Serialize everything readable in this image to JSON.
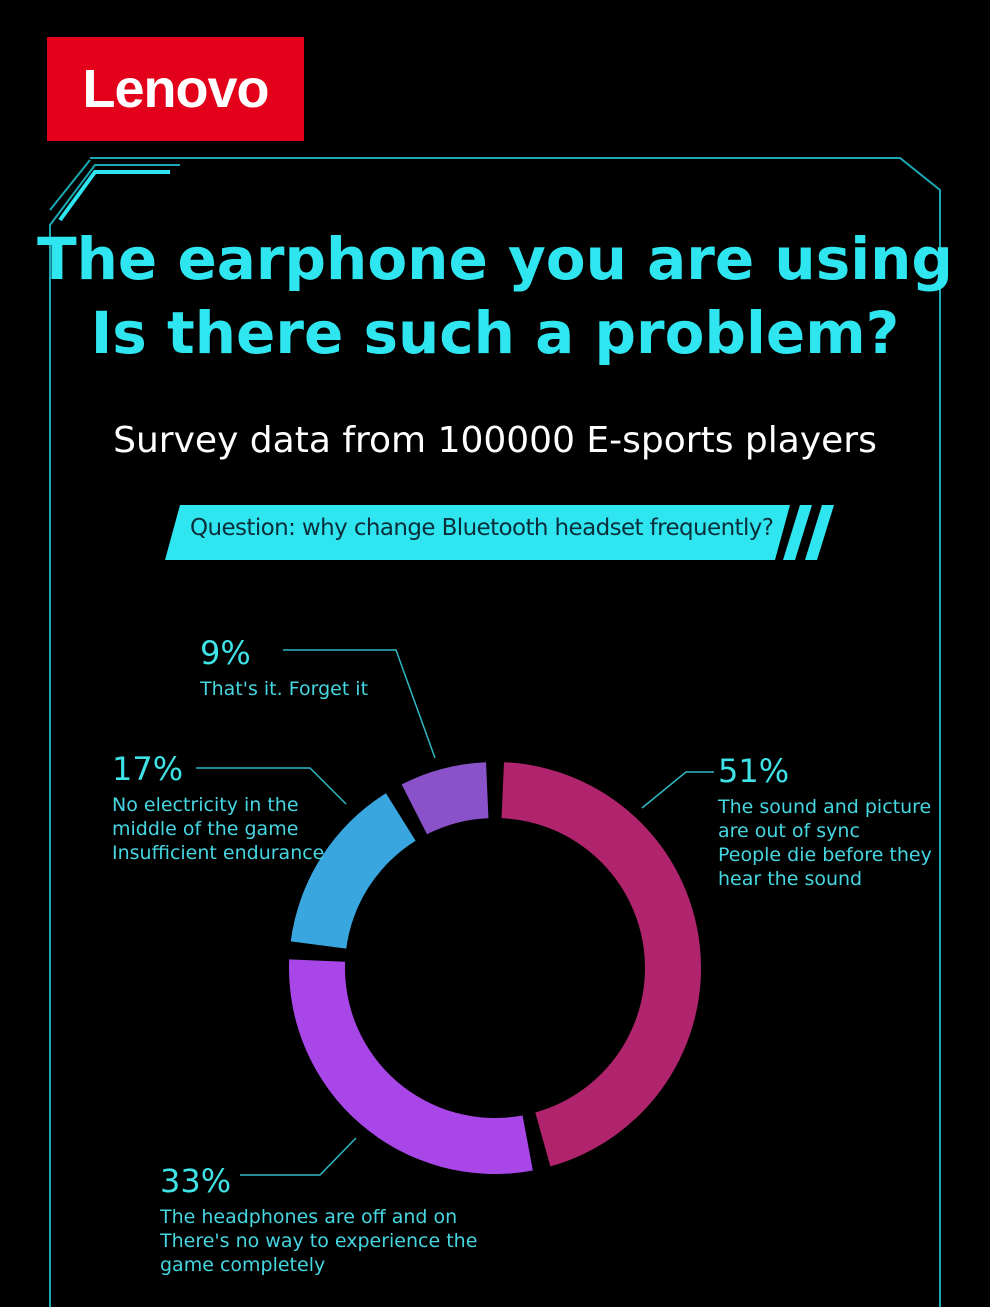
{
  "brand": "Lenovo",
  "chart_data": {
    "type": "pie",
    "title": [
      "The earphone you are using",
      "Is there such a problem?"
    ],
    "subtitle": "Survey data from 100000 E-sports players",
    "question": "Question: why change Bluetooth headset frequently?",
    "categories": [
      "The sound and picture\nare out of sync\nPeople die before they\nhear the sound",
      "The headphones are off and on\nThere's no way to experience the\n game completely",
      "No electricity in the\nmiddle of the game\nInsufficient endurance",
      "That's it. Forget it"
    ],
    "values": [
      51,
      33,
      17,
      9
    ],
    "value_labels": [
      "51%",
      "33%",
      "17%",
      "9%"
    ],
    "colors": [
      "#b0246e",
      "#a846e8",
      "#3aa6e0",
      "#8a52c8"
    ]
  }
}
